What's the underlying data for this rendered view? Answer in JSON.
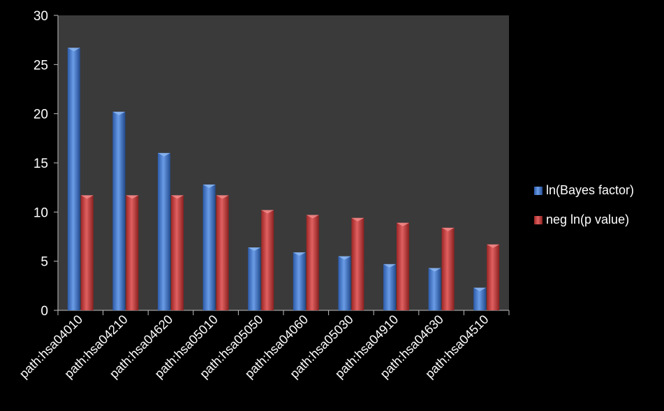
{
  "chart_data": {
    "type": "bar",
    "categories": [
      "path:hsa04010",
      "path:hsa04210",
      "path:hsa04620",
      "path:hsa05010",
      "path:hsa05050",
      "path:hsa04060",
      "path:hsa05030",
      "path:hsa04910",
      "path:hsa04630",
      "path:hsa04510"
    ],
    "series": [
      {
        "name": "ln(Bayes factor)",
        "color": "#4a7fd0",
        "values": [
          26.7,
          20.2,
          16.0,
          12.8,
          6.4,
          5.9,
          5.5,
          4.7,
          4.3,
          2.3
        ]
      },
      {
        "name": "neg ln(p value)",
        "color": "#c94242",
        "values": [
          11.7,
          11.7,
          11.7,
          11.7,
          10.2,
          9.7,
          9.4,
          8.9,
          8.4,
          6.7
        ]
      }
    ],
    "title": "",
    "xlabel": "",
    "ylabel": "",
    "ylim": [
      0,
      30
    ],
    "yticks": [
      "0",
      "5",
      "10",
      "15",
      "20",
      "25",
      "30"
    ],
    "grid": false,
    "legend_position": "right",
    "plot_background": "#3a3a3a"
  }
}
